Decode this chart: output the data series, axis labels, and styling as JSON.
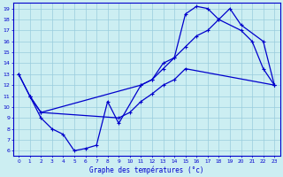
{
  "xlabel": "Graphe des températures (°c)",
  "xlim": [
    -0.5,
    23.5
  ],
  "ylim": [
    5.5,
    19.5
  ],
  "xticks": [
    0,
    1,
    2,
    3,
    4,
    5,
    6,
    7,
    8,
    9,
    10,
    11,
    12,
    13,
    14,
    15,
    16,
    17,
    18,
    19,
    20,
    21,
    22,
    23
  ],
  "yticks": [
    6,
    7,
    8,
    9,
    10,
    11,
    12,
    13,
    14,
    15,
    16,
    17,
    18,
    19
  ],
  "bg_color": "#cceef2",
  "line_color": "#0000cc",
  "grid_color": "#99ccdd",
  "line1_x": [
    0,
    1,
    2,
    3,
    4,
    5,
    6,
    7,
    8,
    9,
    11,
    12,
    13,
    14,
    15,
    16,
    17,
    18,
    20,
    21,
    22,
    23
  ],
  "line1_y": [
    13,
    11,
    9,
    8,
    7.5,
    6,
    6.2,
    6.5,
    10.5,
    8.5,
    12,
    12.5,
    14,
    14.5,
    18.5,
    19.2,
    19,
    18,
    17,
    16,
    13.5,
    12
  ],
  "line2_x": [
    0,
    1,
    2,
    11,
    12,
    13,
    14,
    15,
    16,
    17,
    18,
    19,
    20,
    22,
    23
  ],
  "line2_y": [
    13,
    11,
    9.5,
    12,
    12.5,
    13.5,
    14.5,
    15.5,
    16.5,
    17,
    18,
    19,
    17.5,
    16,
    12
  ],
  "line3_x": [
    1,
    2,
    9,
    10,
    11,
    12,
    13,
    14,
    15,
    23
  ],
  "line3_y": [
    11,
    9.5,
    9,
    9.5,
    10.5,
    11.2,
    12,
    12.5,
    13.5,
    12
  ]
}
